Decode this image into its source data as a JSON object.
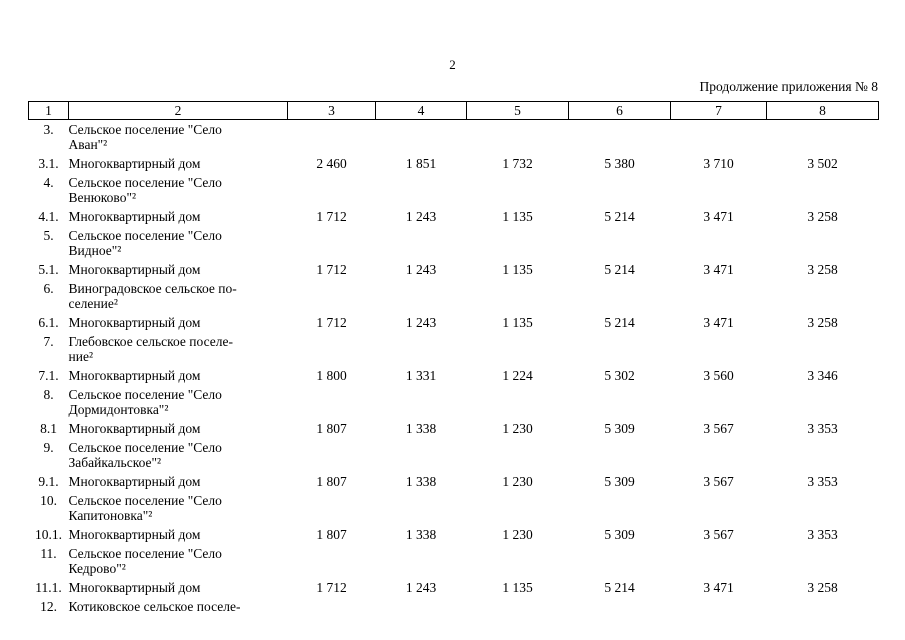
{
  "page": {
    "number": "2",
    "continuation": "Продолжение приложения № 8"
  },
  "table": {
    "header": [
      "1",
      "2",
      "3",
      "4",
      "5",
      "6",
      "7",
      "8"
    ],
    "rows": [
      {
        "num": "3.",
        "name_lines": [
          "Сельское поселение \"Село",
          "Аван\"²"
        ],
        "values": [
          "",
          "",
          "",
          "",
          "",
          ""
        ]
      },
      {
        "num": "3.1.",
        "name_lines": [
          "Многоквартирный дом"
        ],
        "values": [
          "2 460",
          "1 851",
          "1 732",
          "5 380",
          "3 710",
          "3 502"
        ]
      },
      {
        "num": "4.",
        "name_lines": [
          "Сельское поселение \"Село",
          "Венюково\"²"
        ],
        "values": [
          "",
          "",
          "",
          "",
          "",
          ""
        ]
      },
      {
        "num": "4.1.",
        "name_lines": [
          "Многоквартирный дом"
        ],
        "values": [
          "1 712",
          "1 243",
          "1 135",
          "5 214",
          "3 471",
          "3 258"
        ]
      },
      {
        "num": "5.",
        "name_lines": [
          "Сельское поселение \"Село",
          "Видное\"²"
        ],
        "values": [
          "",
          "",
          "",
          "",
          "",
          ""
        ]
      },
      {
        "num": "5.1.",
        "name_lines": [
          "Многоквартирный дом"
        ],
        "values": [
          "1 712",
          "1 243",
          "1 135",
          "5 214",
          "3 471",
          "3 258"
        ]
      },
      {
        "num": "6.",
        "name_lines": [
          "Виноградовское сельское по-",
          "селение²"
        ],
        "values": [
          "",
          "",
          "",
          "",
          "",
          ""
        ]
      },
      {
        "num": "6.1.",
        "name_lines": [
          "Многоквартирный дом"
        ],
        "values": [
          "1 712",
          "1 243",
          "1 135",
          "5 214",
          "3 471",
          "3 258"
        ]
      },
      {
        "num": "7.",
        "name_lines": [
          "Глебовское сельское поселе-",
          "ние²"
        ],
        "values": [
          "",
          "",
          "",
          "",
          "",
          ""
        ]
      },
      {
        "num": "7.1.",
        "name_lines": [
          "Многоквартирный дом"
        ],
        "values": [
          "1 800",
          "1 331",
          "1 224",
          "5 302",
          "3 560",
          "3 346"
        ]
      },
      {
        "num": "8.",
        "name_lines": [
          "Сельское поселение \"Село",
          "Дормидонтовка\"²"
        ],
        "values": [
          "",
          "",
          "",
          "",
          "",
          ""
        ]
      },
      {
        "num": "8.1",
        "name_lines": [
          "Многоквартирный дом"
        ],
        "values": [
          "1 807",
          "1 338",
          "1 230",
          "5 309",
          "3 567",
          "3 353"
        ]
      },
      {
        "num": "9.",
        "name_lines": [
          "Сельское поселение \"Село",
          "Забайкальское\"²"
        ],
        "values": [
          "",
          "",
          "",
          "",
          "",
          ""
        ]
      },
      {
        "num": "9.1.",
        "name_lines": [
          "Многоквартирный дом"
        ],
        "values": [
          "1 807",
          "1 338",
          "1 230",
          "5 309",
          "3 567",
          "3 353"
        ]
      },
      {
        "num": "10.",
        "name_lines": [
          "Сельское поселение \"Село",
          "Капитоновка\"²"
        ],
        "values": [
          "",
          "",
          "",
          "",
          "",
          ""
        ]
      },
      {
        "num": "10.1.",
        "name_lines": [
          "Многоквартирный дом"
        ],
        "values": [
          "1 807",
          "1 338",
          "1 230",
          "5 309",
          "3 567",
          "3 353"
        ]
      },
      {
        "num": "11.",
        "name_lines": [
          "Сельское поселение \"Село",
          "Кедрово\"²"
        ],
        "values": [
          "",
          "",
          "",
          "",
          "",
          ""
        ]
      },
      {
        "num": "11.1.",
        "name_lines": [
          "Многоквартирный дом"
        ],
        "values": [
          "1 712",
          "1 243",
          "1 135",
          "5 214",
          "3 471",
          "3 258"
        ]
      },
      {
        "num": "12.",
        "name_lines": [
          "Котиковское сельское поселе-"
        ],
        "values": [
          "",
          "",
          "",
          "",
          "",
          ""
        ]
      }
    ]
  }
}
